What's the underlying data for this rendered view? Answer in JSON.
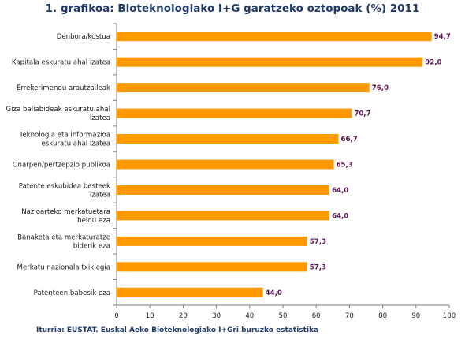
{
  "chart_data": {
    "type": "bar",
    "orientation": "horizontal",
    "title": "1. grafikoa: Bioteknologiako I+G garatzeko oztopoak (%) 2011",
    "categories": [
      [
        "Denbora/kostua"
      ],
      [
        "Kapitala eskuratu ahal izatea"
      ],
      [
        "Errekerimendu arautzaileak"
      ],
      [
        "Giza baliabideak eskuratu ahal",
        "izatea"
      ],
      [
        "Teknologia eta informazioa",
        "eskuratu ahal izatea"
      ],
      [
        "Onarpen/pertzepzio publikoa"
      ],
      [
        "Patente eskubidea besteek",
        "izatea"
      ],
      [
        "Nazioarteko merkatuetara",
        "heldu eza"
      ],
      [
        "Banaketa eta merkaturatze",
        "biderik eza"
      ],
      [
        "Merkatu nazionala txikiegia"
      ],
      [
        "Patenteen babesik eza"
      ]
    ],
    "values": [
      94.7,
      92.0,
      76.0,
      70.7,
      66.7,
      65.3,
      64.0,
      64.0,
      57.3,
      57.3,
      44.0
    ],
    "value_labels": [
      "94,7",
      "92,0",
      "76,0",
      "70,7",
      "66,7",
      "65,3",
      "64,0",
      "64,0",
      "57,3",
      "57,3",
      "44,0"
    ],
    "xlim": [
      0,
      100
    ],
    "x_ticks": [
      0,
      10,
      20,
      30,
      40,
      50,
      60,
      70,
      80,
      90,
      100
    ],
    "grid": false,
    "bar_color": "#ff9900",
    "value_label_color": "#5c1352"
  },
  "footer": {
    "source": "Iturria: EUSTAT. Euskal Aeko Bioteknologiako I+Gri buruzko estatistika"
  },
  "colors": {
    "title": "#1f3a68",
    "axis": "#808080"
  }
}
